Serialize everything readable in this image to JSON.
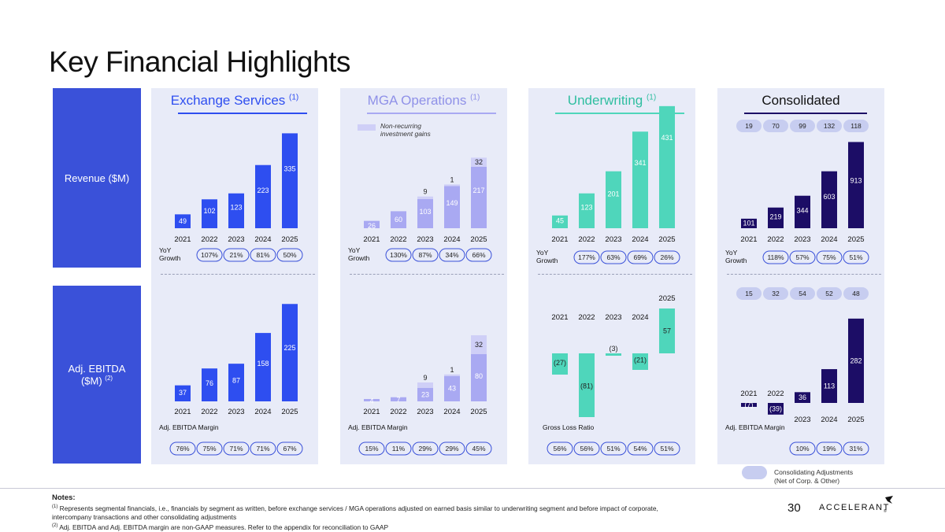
{
  "title": "Key Financial Highlights",
  "row_labels": {
    "revenue": "Revenue ($M)",
    "ebitda": "Adj. EBITDA ($M)",
    "ebitda_sup": "(2)"
  },
  "colors": {
    "exchange": "#2e4ef0",
    "mga_base": "#a9a9f2",
    "mga_light": "#cfcff7",
    "underwriting": "#4fd6bb",
    "consolidated": "#1c0d66",
    "accent": "#3a51d9",
    "panel": "#e8ebf8"
  },
  "panels": [
    {
      "key": "exchange",
      "title": "Exchange Services",
      "sup": "(1)"
    },
    {
      "key": "mga",
      "title": "MGA Operations",
      "sup": "(1)"
    },
    {
      "key": "underwriting",
      "title": "Underwriting",
      "sup": "(1)"
    },
    {
      "key": "consolidated",
      "title": "Consolidated",
      "sup": ""
    }
  ],
  "years": [
    "2021",
    "2022",
    "2023",
    "2024",
    "2025"
  ],
  "labels": {
    "yoy_line1": "YoY",
    "yoy_line2": "Growth",
    "adj_ebitda_margin": "Adj. EBITDA Margin",
    "gross_loss_ratio": "Gross Loss Ratio",
    "nonrecurring_line1": "Non-recurring",
    "nonrecurring_line2": "investment gains",
    "consol_adj_line1": "Consolidating Adjustments",
    "consol_adj_line2": "(Net of Corp. & Other)"
  },
  "chart_data": [
    {
      "type": "bar",
      "title": "Exchange Services Revenue ($M)",
      "categories": [
        "2021",
        "2022",
        "2023",
        "2024",
        "2025"
      ],
      "values": [
        49,
        102,
        123,
        223,
        335
      ],
      "labels": [
        "49",
        "102",
        "123",
        "223",
        "335"
      ],
      "yoy_growth": [
        "107%",
        "21%",
        "81%",
        "50%"
      ]
    },
    {
      "type": "bar",
      "stacked": true,
      "title": "MGA Operations Revenue ($M)",
      "categories": [
        "2021",
        "2022",
        "2023",
        "2024",
        "2025"
      ],
      "series": [
        {
          "name": "Base",
          "values": [
            26,
            60,
            103,
            149,
            217
          ],
          "labels": [
            "26",
            "60",
            "103",
            "149",
            "217"
          ]
        },
        {
          "name": "Non-recurring investment gains",
          "values": [
            0,
            0,
            9,
            1,
            32
          ],
          "labels": [
            "",
            "",
            "9",
            "1",
            "32"
          ]
        }
      ],
      "yoy_growth": [
        "130%",
        "87%",
        "34%",
        "66%"
      ]
    },
    {
      "type": "bar",
      "title": "Underwriting Revenue ($M)",
      "categories": [
        "2021",
        "2022",
        "2023",
        "2024",
        "2025"
      ],
      "values": [
        45,
        123,
        201,
        341,
        431
      ],
      "labels": [
        "45",
        "123",
        "201",
        "341",
        "431"
      ],
      "yoy_growth": [
        "177%",
        "63%",
        "69%",
        "26%"
      ]
    },
    {
      "type": "bar",
      "title": "Consolidated Revenue ($M)",
      "categories": [
        "2021",
        "2022",
        "2023",
        "2024",
        "2025"
      ],
      "values": [
        101,
        219,
        344,
        603,
        913
      ],
      "labels": [
        "101",
        "219",
        "344",
        "603",
        "913"
      ],
      "consolidating_adjustments": [
        "19",
        "70",
        "99",
        "132",
        "118"
      ],
      "yoy_growth": [
        "118%",
        "57%",
        "75%",
        "51%"
      ]
    },
    {
      "type": "bar",
      "title": "Exchange Services Adj. EBITDA ($M)",
      "categories": [
        "2021",
        "2022",
        "2023",
        "2024",
        "2025"
      ],
      "values": [
        37,
        76,
        87,
        158,
        225
      ],
      "labels": [
        "37",
        "76",
        "87",
        "158",
        "225"
      ],
      "adj_ebitda_margin": [
        "76%",
        "75%",
        "71%",
        "71%",
        "67%"
      ]
    },
    {
      "type": "bar",
      "stacked": true,
      "title": "MGA Operations Adj. EBITDA ($M)",
      "categories": [
        "2021",
        "2022",
        "2023",
        "2024",
        "2025"
      ],
      "series": [
        {
          "name": "Base",
          "values": [
            4,
            7,
            23,
            43,
            80
          ],
          "labels": [
            "4",
            "7",
            "23",
            "43",
            "80"
          ]
        },
        {
          "name": "Non-recurring investment gains",
          "values": [
            0,
            0,
            9,
            1,
            32
          ],
          "labels": [
            "",
            "",
            "9",
            "1",
            "32"
          ]
        }
      ],
      "adj_ebitda_margin": [
        "15%",
        "11%",
        "29%",
        "29%",
        "45%"
      ]
    },
    {
      "type": "bar",
      "title": "Underwriting Adj. EBITDA ($M)",
      "categories": [
        "2021",
        "2022",
        "2023",
        "2024",
        "2025"
      ],
      "values": [
        -27,
        -81,
        -3,
        -21,
        57
      ],
      "labels": [
        "(27)",
        "(81)",
        "(3)",
        "(21)",
        "57"
      ],
      "gross_loss_ratio": [
        "56%",
        "56%",
        "51%",
        "54%",
        "51%"
      ]
    },
    {
      "type": "bar",
      "title": "Consolidated Adj. EBITDA ($M)",
      "categories": [
        "2021",
        "2022",
        "2023",
        "2024",
        "2025"
      ],
      "values": [
        -7,
        -39,
        36,
        113,
        282
      ],
      "labels": [
        "(7)",
        "(39)",
        "36",
        "113",
        "282"
      ],
      "consolidating_adjustments": [
        "15",
        "32",
        "54",
        "52",
        "48"
      ],
      "adj_ebitda_margin": [
        "10%",
        "19%",
        "31%"
      ]
    }
  ],
  "notes": {
    "heading": "Notes:",
    "note1_sup": "(1)",
    "note1": "Represents segmental financials, i.e., financials by segment as written, before exchange services / MGA operations adjusted on earned basis similar to underwriting segment and before impact of corporate, intercompany transactions and other consolidating adjustments",
    "note2_sup": "(2)",
    "note2": "Adj. EBITDA and Adj. EBITDA margin are non-GAAP measures. Refer to the appendix for reconciliation to GAAP"
  },
  "page_number": "30",
  "logo_text": "ACCELERANT",
  "logo_tm": "®"
}
